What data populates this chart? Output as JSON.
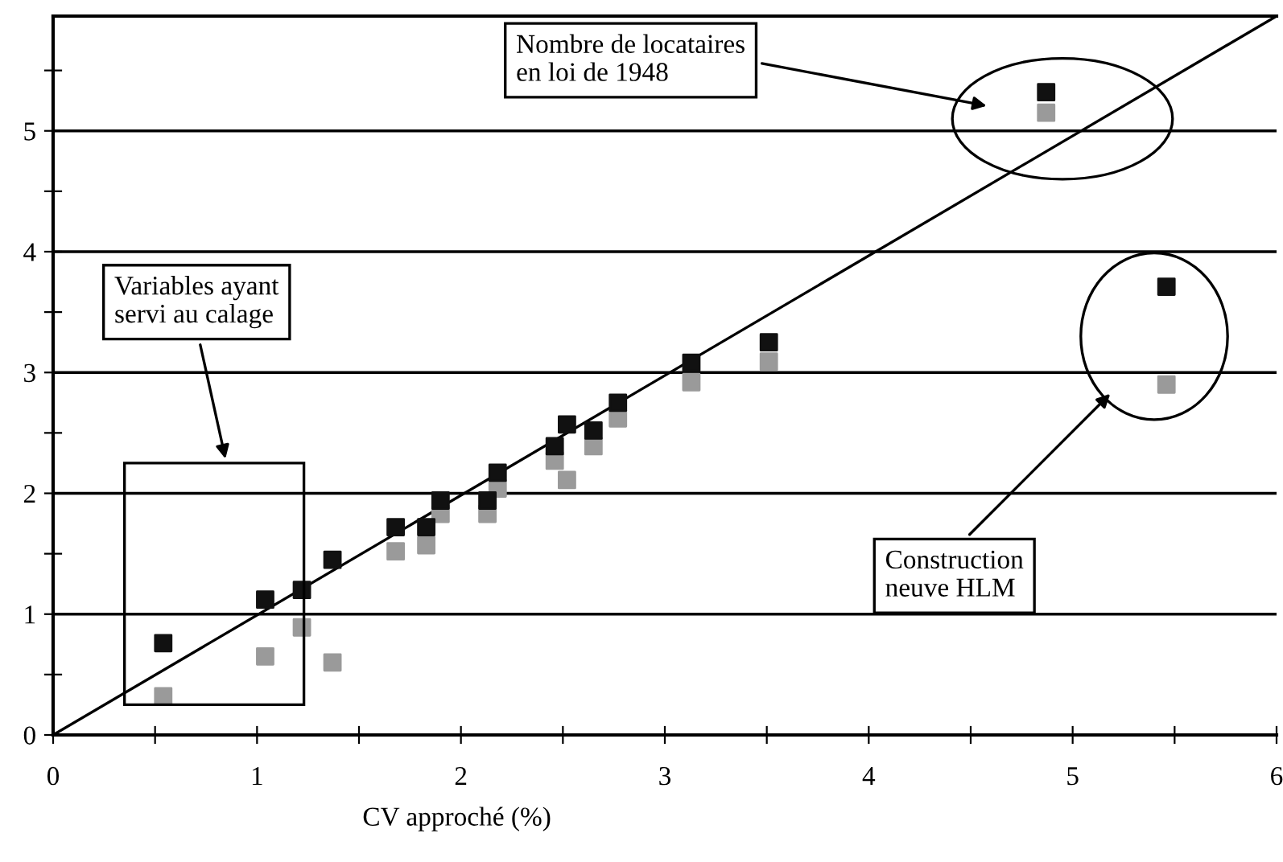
{
  "chart_data": {
    "type": "scatter",
    "xlabel": "CV approché (%)",
    "xlim": [
      0,
      6
    ],
    "ylim": [
      0,
      5.95
    ],
    "xticks": [
      0,
      {
        "value": 0.5,
        "label": null
      },
      1,
      {
        "value": 1.5,
        "label": null
      },
      2,
      {
        "value": 2.5,
        "label": null
      },
      3,
      {
        "value": 3.5,
        "label": null
      },
      4,
      {
        "value": 4.5,
        "label": null
      },
      5,
      {
        "value": 5.5,
        "label": null
      },
      6
    ],
    "yticks": [
      0,
      {
        "value": 0.5,
        "label": null
      },
      1,
      {
        "value": 1.5,
        "label": null
      },
      2,
      {
        "value": 2.5,
        "label": null
      },
      3,
      {
        "value": 3.5,
        "label": null
      },
      4,
      {
        "value": 4.5,
        "label": null
      },
      5,
      {
        "value": 5.5,
        "label": null
      }
    ],
    "grid": "y",
    "series": [
      {
        "marker": "square",
        "color": "#111111",
        "x": [
          0.54,
          1.04,
          1.22,
          1.37,
          1.68,
          1.83,
          1.9,
          2.13,
          2.18,
          2.46,
          2.52,
          2.65,
          2.77,
          3.13,
          3.51,
          4.87,
          5.46
        ],
        "values": [
          0.76,
          1.12,
          1.2,
          1.45,
          1.72,
          1.72,
          1.94,
          1.94,
          2.17,
          2.39,
          2.57,
          2.52,
          2.75,
          3.08,
          3.25,
          5.32,
          3.71
        ]
      },
      {
        "marker": "square",
        "color": "#9a9a9a",
        "x": [
          0.54,
          1.04,
          1.22,
          1.37,
          1.68,
          1.83,
          1.9,
          2.13,
          2.18,
          2.46,
          2.52,
          2.65,
          2.77,
          3.13,
          3.51,
          4.87,
          5.46
        ],
        "values": [
          0.32,
          0.65,
          0.89,
          0.6,
          1.52,
          1.57,
          1.83,
          1.83,
          2.04,
          2.27,
          2.11,
          2.39,
          2.62,
          2.92,
          3.09,
          5.15,
          2.9
        ]
      },
      {
        "type": "line",
        "color": "#000000",
        "x": [
          0,
          6
        ],
        "values": [
          0,
          5.95
        ]
      }
    ],
    "annotations": [
      "Variables ayant\nservi au calage",
      "Nombre de locataires\nen loi de 1948",
      "Construction\nneuve HLM"
    ]
  }
}
